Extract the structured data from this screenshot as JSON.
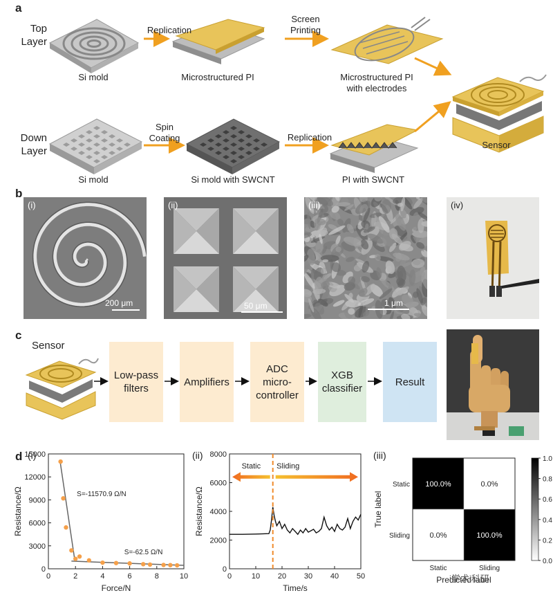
{
  "panel_a": {
    "label": "a",
    "top_layer": "Top\nLayer",
    "down_layer": "Down\nLayer",
    "top_captions": [
      "Si mold",
      "Microstructured PI",
      "Microstructured PI\nwith electrodes"
    ],
    "top_arrows": [
      "Replication",
      "Screen\nPrinting"
    ],
    "down_captions": [
      "Si mold",
      "Si mold with SWCNT",
      "PI with SWCNT"
    ],
    "down_arrows": [
      "Spin\nCoating",
      "Replication"
    ],
    "sensor_caption": "Sensor"
  },
  "panel_b": {
    "label": "b",
    "images": [
      {
        "tag": "(i)",
        "scale": "200 μm"
      },
      {
        "tag": "(ii)",
        "scale": "50 μm"
      },
      {
        "tag": "(iii)",
        "scale": "1 μm"
      },
      {
        "tag": "(iv)",
        "scale": ""
      }
    ]
  },
  "panel_c": {
    "label": "c",
    "sensor_label": "Sensor",
    "boxes": [
      {
        "text": "Low-pass\nfilters",
        "color": "#fdebd0"
      },
      {
        "text": "Amplifiers",
        "color": "#fdebd0"
      },
      {
        "text": "ADC\nmicro-\ncontroller",
        "color": "#fdebd0"
      },
      {
        "text": "XGB\nclassifier",
        "color": "#dfeedd"
      },
      {
        "text": "Result",
        "color": "#cfe4f3"
      }
    ]
  },
  "panel_d": {
    "label": "d",
    "watermark": "i学术i科研"
  },
  "chart_data": [
    {
      "type": "scatter",
      "tag": "(i)",
      "xlabel": "Force/N",
      "ylabel": "Resistance/Ω",
      "xlim": [
        0,
        10
      ],
      "ylim": [
        0,
        15000
      ],
      "xticks": [
        0,
        2,
        4,
        6,
        8,
        10
      ],
      "yticks": [
        0,
        3000,
        6000,
        9000,
        12000,
        15000
      ],
      "points": [
        [
          0.9,
          14000
        ],
        [
          1.1,
          9200
        ],
        [
          1.3,
          5400
        ],
        [
          1.7,
          2400
        ],
        [
          2.0,
          1300
        ],
        [
          2.3,
          1600
        ],
        [
          3.0,
          1100
        ],
        [
          4.0,
          800
        ],
        [
          5.0,
          750
        ],
        [
          6.0,
          700
        ],
        [
          7.0,
          600
        ],
        [
          7.5,
          550
        ],
        [
          8.5,
          500
        ],
        [
          9.0,
          480
        ],
        [
          9.5,
          450
        ]
      ],
      "fit_lines": [
        {
          "label": "S=-11570.9 Ω/N",
          "from": [
            0.85,
            14200
          ],
          "to": [
            1.95,
            1100
          ]
        },
        {
          "label": "S=-62.5 Ω/N",
          "from": [
            1.7,
            1000
          ],
          "to": [
            10,
            450
          ]
        }
      ],
      "marker_color": "#f5a04a"
    },
    {
      "type": "line",
      "tag": "(ii)",
      "xlabel": "Time/s",
      "ylabel": "Resistance/Ω",
      "xlim": [
        0,
        50
      ],
      "ylim": [
        0,
        8000
      ],
      "xticks": [
        0,
        10,
        20,
        30,
        40,
        50
      ],
      "yticks": [
        0,
        2000,
        4000,
        6000,
        8000
      ],
      "divider_x": 16.5,
      "region_labels": [
        "Static",
        "Sliding"
      ],
      "x": [
        0,
        5,
        10,
        15,
        15.5,
        16,
        16.5,
        17,
        17.5,
        18,
        19,
        20,
        21,
        22,
        23,
        24,
        25,
        26,
        27,
        28,
        29,
        30,
        31,
        32,
        33,
        34,
        35,
        36,
        37,
        38,
        39,
        40,
        41,
        42,
        43,
        44,
        45,
        46,
        47,
        48,
        49,
        50
      ],
      "y": [
        2400,
        2400,
        2420,
        2450,
        2700,
        3400,
        4300,
        3700,
        3300,
        3000,
        3300,
        2800,
        3100,
        2700,
        2500,
        2800,
        2600,
        2400,
        2700,
        2500,
        2800,
        2550,
        2650,
        2750,
        2500,
        2600,
        2800,
        3600,
        3000,
        2700,
        2900,
        2600,
        3100,
        2800,
        2700,
        2900,
        3500,
        2800,
        3300,
        3600,
        3400,
        3800
      ]
    },
    {
      "type": "heatmap",
      "tag": "(iii)",
      "xlabel": "Predicted label",
      "ylabel": "True label",
      "row_labels": [
        "Static",
        "Sliding"
      ],
      "col_labels": [
        "Static",
        "Sliding"
      ],
      "values": [
        [
          1.0,
          0.0
        ],
        [
          0.0,
          1.0
        ]
      ],
      "cell_text": [
        [
          "100.0%",
          "0.0%"
        ],
        [
          "0.0%",
          "100.0%"
        ]
      ],
      "colorbar_ticks": [
        "1.0",
        "0.8",
        "0.6",
        "0.4",
        "0.2",
        "0.0"
      ]
    }
  ]
}
